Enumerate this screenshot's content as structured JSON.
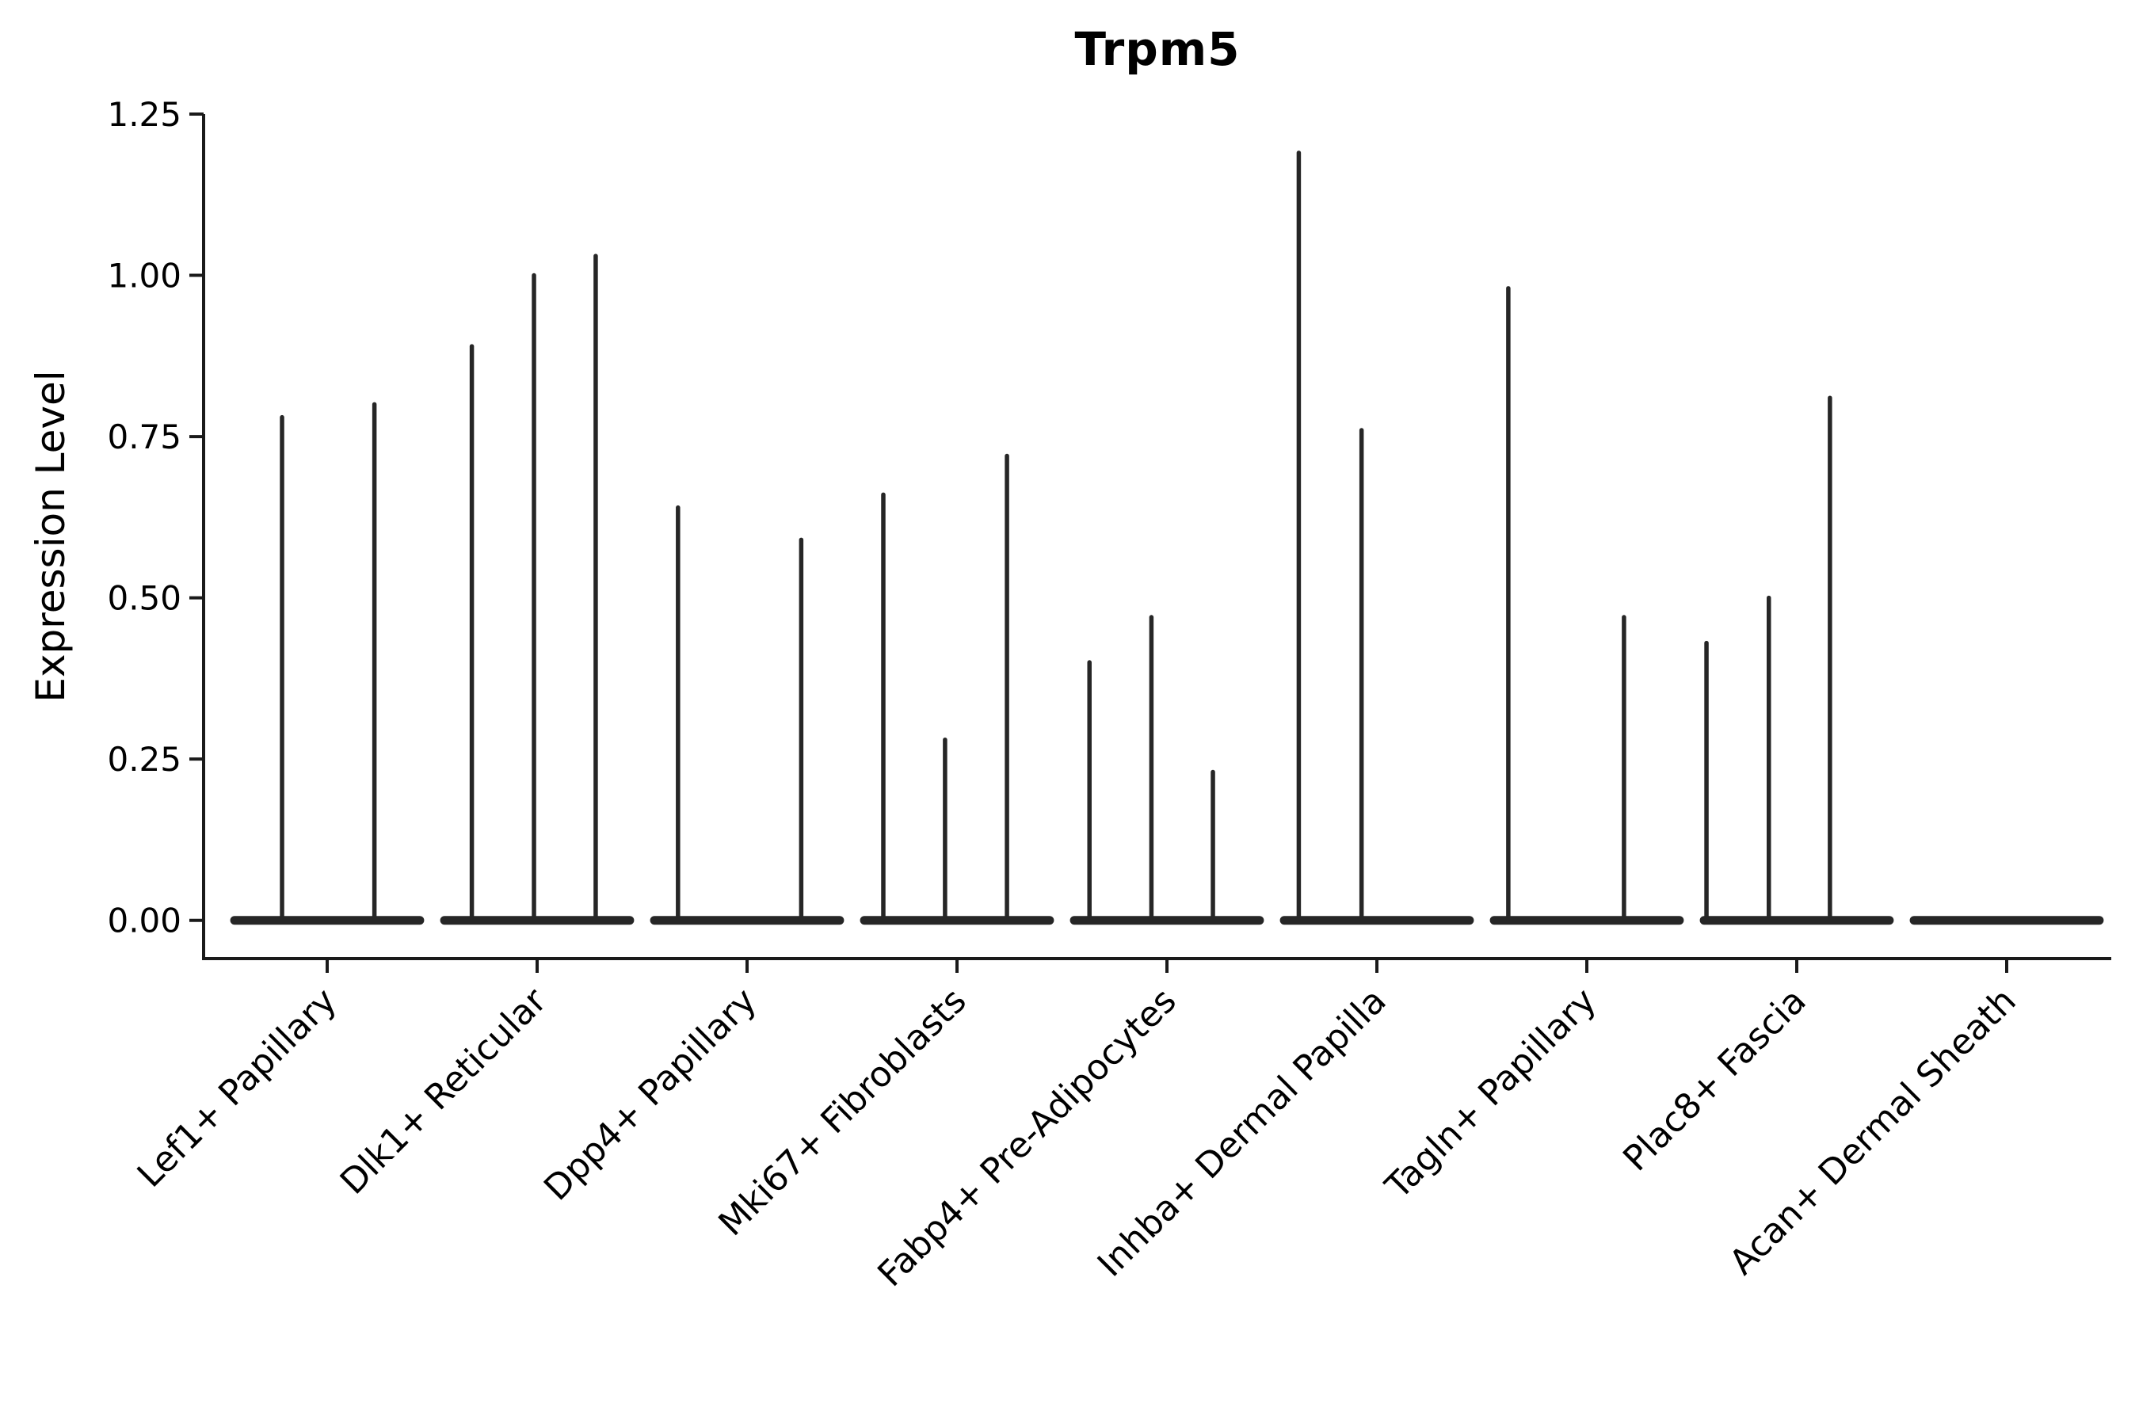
{
  "chart_data": {
    "type": "violin",
    "title": "Trpm5",
    "ylabel": "Expression Level",
    "xlabel": "",
    "ylim": [
      -0.06,
      1.25
    ],
    "yticks": [
      0,
      0.25,
      0.5,
      0.75,
      1.0,
      1.25
    ],
    "ytick_labels": [
      "0.00",
      "0.25",
      "0.50",
      "0.75",
      "1.00",
      "1.25"
    ],
    "grid": false,
    "legend": "none",
    "violin_color": "#262626",
    "axis_color": "#1a1a1a",
    "text_color": "#000000",
    "categories": [
      "Lef1+ Papillary",
      "Dlk1+ Reticular",
      "Dpp4+ Papillary",
      "Mki67+ Fibroblasts",
      "Fabp4+ Pre-Adipocytes",
      "Inhba+ Dermal Papilla",
      "Tagln+ Papillary",
      "Plac8+ Fascia",
      "Acan+ Dermal Sheath"
    ],
    "violins": [
      {
        "category": "Lef1+ Papillary",
        "base_halfwidth": 0.46,
        "spikes": [
          {
            "dx": -0.215,
            "value": 0.78
          },
          {
            "dx": 0.225,
            "value": 0.8
          }
        ]
      },
      {
        "category": "Dlk1+ Reticular",
        "base_halfwidth": 0.46,
        "spikes": [
          {
            "dx": -0.311,
            "value": 0.89
          },
          {
            "dx": -0.015,
            "value": 1.0
          },
          {
            "dx": 0.279,
            "value": 1.03
          }
        ]
      },
      {
        "category": "Dpp4+ Papillary",
        "base_halfwidth": 0.46,
        "spikes": [
          {
            "dx": -0.329,
            "value": 0.64
          },
          {
            "dx": 0.258,
            "value": 0.59
          }
        ]
      },
      {
        "category": "Mki67+ Fibroblasts",
        "base_halfwidth": 0.46,
        "spikes": [
          {
            "dx": -0.351,
            "value": 0.66
          },
          {
            "dx": -0.057,
            "value": 0.28
          },
          {
            "dx": 0.238,
            "value": 0.72
          }
        ]
      },
      {
        "category": "Fabp4+ Pre-Adipocytes",
        "base_halfwidth": 0.46,
        "spikes": [
          {
            "dx": -0.369,
            "value": 0.4
          },
          {
            "dx": -0.074,
            "value": 0.47
          },
          {
            "dx": 0.219,
            "value": 0.23
          }
        ]
      },
      {
        "category": "Inhba+ Dermal Papilla",
        "base_halfwidth": 0.46,
        "spikes": [
          {
            "dx": -0.372,
            "value": 1.19
          },
          {
            "dx": -0.073,
            "value": 0.76
          }
        ]
      },
      {
        "category": "Tagln+ Papillary",
        "base_halfwidth": 0.46,
        "spikes": [
          {
            "dx": -0.374,
            "value": 0.98
          },
          {
            "dx": 0.177,
            "value": 0.47
          }
        ]
      },
      {
        "category": "Plac8+ Fascia",
        "base_halfwidth": 0.46,
        "spikes": [
          {
            "dx": -0.43,
            "value": 0.43
          },
          {
            "dx": -0.133,
            "value": 0.5
          },
          {
            "dx": 0.158,
            "value": 0.81
          }
        ]
      },
      {
        "category": "Acan+ Dermal Sheath",
        "base_halfwidth": 0.46,
        "spikes": []
      }
    ]
  }
}
